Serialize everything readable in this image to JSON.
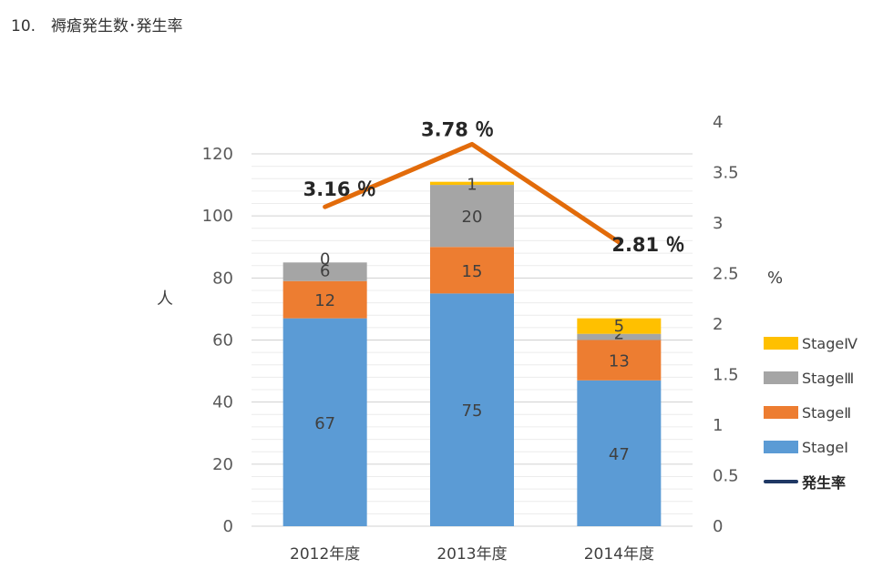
{
  "page": {
    "title": "10.　褥瘡発生数･発生率"
  },
  "colors": {
    "stage1": "#5b9bd5",
    "stage2": "#ed7d31",
    "stage3": "#a5a5a5",
    "stage4": "#ffc000",
    "rate_line": "#e26b0a",
    "rate_legend": "#1f3864",
    "grid": "#d9d9d9"
  },
  "chart_data": {
    "type": "bar",
    "stacked": true,
    "categories": [
      "2012年度",
      "2013年度",
      "2014年度"
    ],
    "series": [
      {
        "name": "StageⅠ",
        "values": [
          67,
          75,
          47
        ],
        "color_key": "stage1"
      },
      {
        "name": "StageⅡ",
        "values": [
          12,
          15,
          13
        ],
        "color_key": "stage2"
      },
      {
        "name": "StageⅢ",
        "values": [
          6,
          20,
          2
        ],
        "color_key": "stage3"
      },
      {
        "name": "StageⅣ",
        "values": [
          0,
          1,
          5
        ],
        "color_key": "stage4"
      }
    ],
    "line_series": {
      "name": "発生率",
      "type": "line",
      "axis": "right",
      "values": [
        3.16,
        3.78,
        2.81
      ],
      "labels": [
        "3.16 ％",
        "3.78 ％",
        "2.81 ％"
      ]
    },
    "ylabel": "人",
    "ylim": [
      0,
      120
    ],
    "yticks": [
      "0",
      "20",
      "40",
      "60",
      "80",
      "100",
      "120"
    ],
    "y2label": "%",
    "y2lim": [
      0,
      4
    ],
    "y2ticks": [
      "0",
      "0.5",
      "1",
      "1.5",
      "2",
      "2.5",
      "3",
      "3.5",
      "4"
    ],
    "grid": true,
    "legend_position": "right",
    "legend": [
      "StageⅣ",
      "StageⅢ",
      "StageⅡ",
      "StageⅠ",
      "発生率"
    ]
  }
}
